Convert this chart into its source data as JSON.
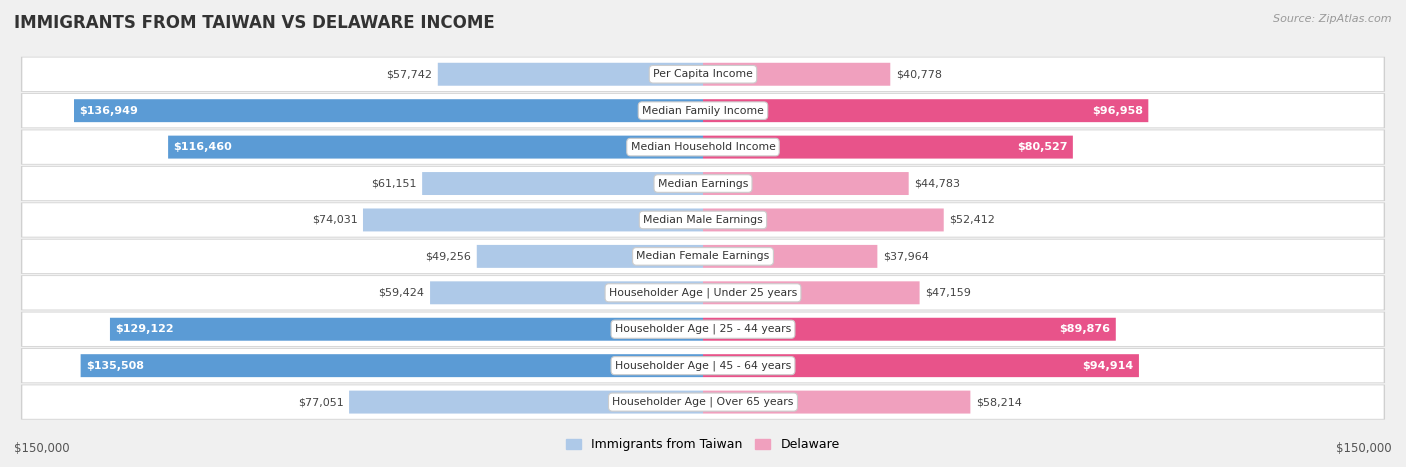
{
  "title": "IMMIGRANTS FROM TAIWAN VS DELAWARE INCOME",
  "source": "Source: ZipAtlas.com",
  "categories": [
    "Per Capita Income",
    "Median Family Income",
    "Median Household Income",
    "Median Earnings",
    "Median Male Earnings",
    "Median Female Earnings",
    "Householder Age | Under 25 years",
    "Householder Age | 25 - 44 years",
    "Householder Age | 45 - 64 years",
    "Householder Age | Over 65 years"
  ],
  "taiwan_values": [
    57742,
    136949,
    116460,
    61151,
    74031,
    49256,
    59424,
    129122,
    135508,
    77051
  ],
  "delaware_values": [
    40778,
    96958,
    80527,
    44783,
    52412,
    37964,
    47159,
    89876,
    94914,
    58214
  ],
  "max_value": 150000,
  "taiwan_color_strong": "#5b9bd5",
  "taiwan_color_light": "#aec9e8",
  "delaware_color_strong": "#e8538a",
  "delaware_color_light": "#f0a0be",
  "taiwan_threshold": 100000,
  "delaware_threshold": 75000,
  "label_taiwan": "Immigrants from Taiwan",
  "label_delaware": "Delaware",
  "background_color": "#f0f0f0",
  "row_bg_color": "#ffffff",
  "row_border_color": "#d0d0d0",
  "xlabel_left": "$150,000",
  "xlabel_right": "$150,000"
}
